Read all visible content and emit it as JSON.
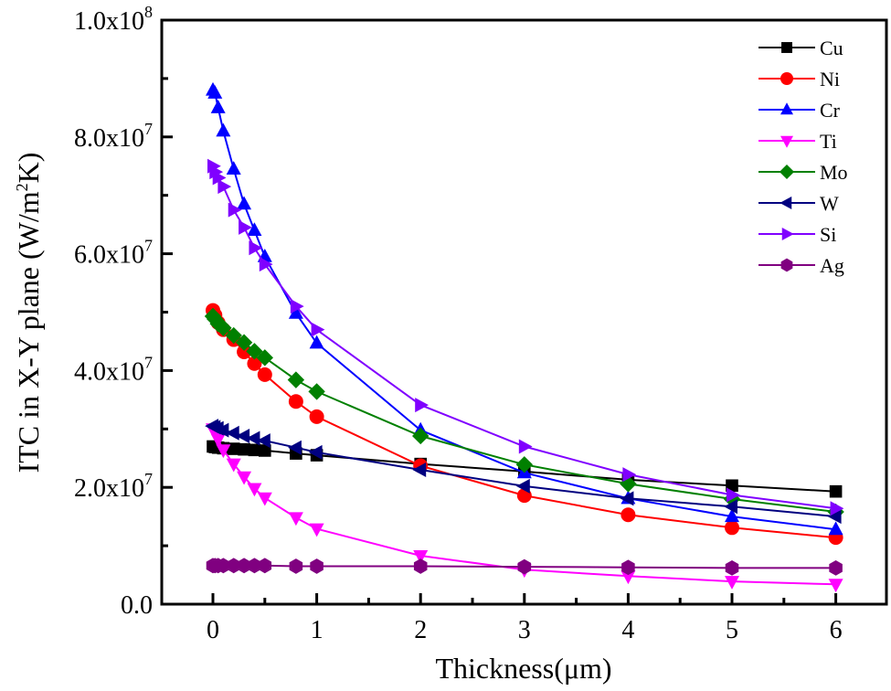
{
  "chart_data": {
    "type": "line",
    "title": "",
    "xlabel": "Thickness(μm)",
    "ylabel_main": "ITC in X-Y plane (W/m",
    "ylabel_sup": "2",
    "ylabel_end": "K)",
    "xlim": [
      -0.5,
      6.5
    ],
    "ylim": [
      0,
      100000000
    ],
    "x_ticks": [
      0,
      1,
      2,
      3,
      4,
      5,
      6
    ],
    "x_tick_labels": [
      "0",
      "1",
      "2",
      "3",
      "4",
      "5",
      "6"
    ],
    "y_ticks": [
      0,
      20000000,
      40000000,
      60000000,
      80000000,
      100000000
    ],
    "y_tick_labels": [
      {
        "base": "0.0",
        "exp": ""
      },
      {
        "base": "2.0x10",
        "exp": "7"
      },
      {
        "base": "4.0x10",
        "exp": "7"
      },
      {
        "base": "6.0x10",
        "exp": "7"
      },
      {
        "base": "8.0x10",
        "exp": "7"
      },
      {
        "base": "1.0x10",
        "exp": "8"
      }
    ],
    "grid": false,
    "legend_position": "top-right",
    "x": [
      0,
      0.02,
      0.05,
      0.1,
      0.2,
      0.3,
      0.4,
      0.5,
      0.8,
      1,
      2,
      3,
      4,
      5,
      6
    ],
    "series": [
      {
        "name": "Cu",
        "color": "#000000",
        "marker": "square",
        "values": [
          27000000,
          26900000,
          26800000,
          26700000,
          26600000,
          26500000,
          26400000,
          26300000,
          25800000,
          25500000,
          24000000,
          22700000,
          21300000,
          20300000,
          19300000
        ]
      },
      {
        "name": "Ni",
        "color": "#ff0000",
        "marker": "circle",
        "values": [
          50300000,
          49500000,
          48200000,
          47000000,
          45300000,
          43200000,
          41200000,
          39300000,
          34700000,
          32100000,
          23700000,
          18600000,
          15300000,
          13100000,
          11400000
        ]
      },
      {
        "name": "Cr",
        "color": "#0000ff",
        "marker": "triangle-up",
        "values": [
          88000000,
          87500000,
          85000000,
          81000000,
          74500000,
          68500000,
          64000000,
          59500000,
          49800000,
          44700000,
          29800000,
          22500000,
          18100000,
          15000000,
          12800000
        ]
      },
      {
        "name": "Ti",
        "color": "#ff00ff",
        "marker": "triangle-down",
        "values": [
          30000000,
          29300000,
          28200000,
          26400000,
          24000000,
          21800000,
          19800000,
          18200000,
          14800000,
          12900000,
          8300000,
          5900000,
          4800000,
          3900000,
          3400000
        ]
      },
      {
        "name": "Mo",
        "color": "#008000",
        "marker": "diamond",
        "values": [
          49300000,
          48800000,
          48000000,
          47300000,
          46000000,
          44800000,
          43300000,
          42200000,
          38400000,
          36400000,
          28800000,
          23900000,
          20600000,
          18000000,
          15800000
        ]
      },
      {
        "name": "W",
        "color": "#000080",
        "marker": "triangle-left",
        "values": [
          30500000,
          30300000,
          30100000,
          29800000,
          29300000,
          28800000,
          28400000,
          28000000,
          26800000,
          26000000,
          23000000,
          20200000,
          18100000,
          16700000,
          15000000
        ]
      },
      {
        "name": "Si",
        "color": "#8000ff",
        "marker": "triangle-right",
        "values": [
          75000000,
          74000000,
          73000000,
          71500000,
          67500000,
          64500000,
          61000000,
          58200000,
          51000000,
          47000000,
          34100000,
          27000000,
          22200000,
          18700000,
          16400000
        ]
      },
      {
        "name": "Ag",
        "color": "#800080",
        "marker": "hexagon",
        "values": [
          6600000,
          6600000,
          6600000,
          6600000,
          6600000,
          6600000,
          6600000,
          6600000,
          6500000,
          6500000,
          6500000,
          6400000,
          6300000,
          6200000,
          6200000
        ]
      }
    ]
  }
}
